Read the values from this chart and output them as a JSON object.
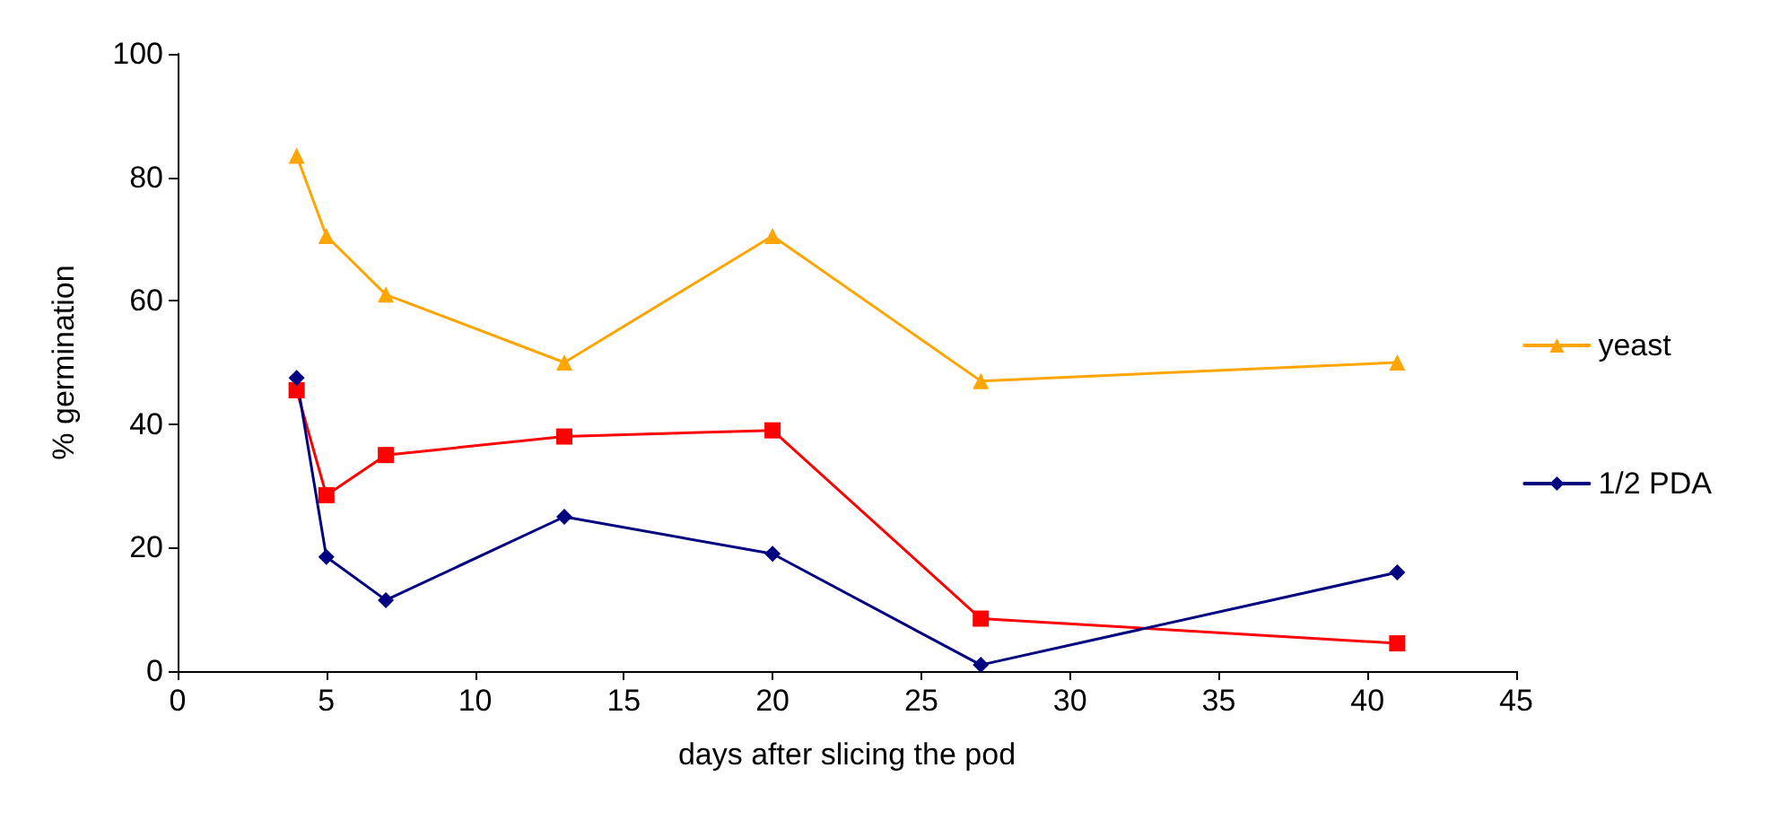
{
  "chart_data": {
    "type": "line",
    "xlabel": "days after slicing the pod",
    "ylabel": "% germination",
    "x": [
      4,
      5,
      7,
      13,
      20,
      27,
      41
    ],
    "series": [
      {
        "name": "yeast",
        "color": "#ffa500",
        "marker": "triangle",
        "values": [
          83.5,
          70.5,
          61,
          50,
          70.5,
          47,
          50
        ]
      },
      {
        "color": "#ff0000",
        "marker": "square",
        "values": [
          45.5,
          28.5,
          35,
          38,
          39,
          8.5,
          4.5
        ]
      },
      {
        "name": "1/2 PDA",
        "color": "#000080",
        "marker": "diamond",
        "values": [
          47.5,
          18.5,
          11.5,
          25,
          19,
          1,
          16
        ]
      }
    ],
    "xlim": [
      0,
      45
    ],
    "xticks": [
      0,
      5,
      10,
      15,
      20,
      25,
      30,
      35,
      40,
      45
    ],
    "ylim": [
      0,
      100
    ],
    "yticks": [
      0,
      20,
      40,
      60,
      80,
      100
    ],
    "grid": false,
    "legend": "right",
    "line_style": "solid"
  }
}
